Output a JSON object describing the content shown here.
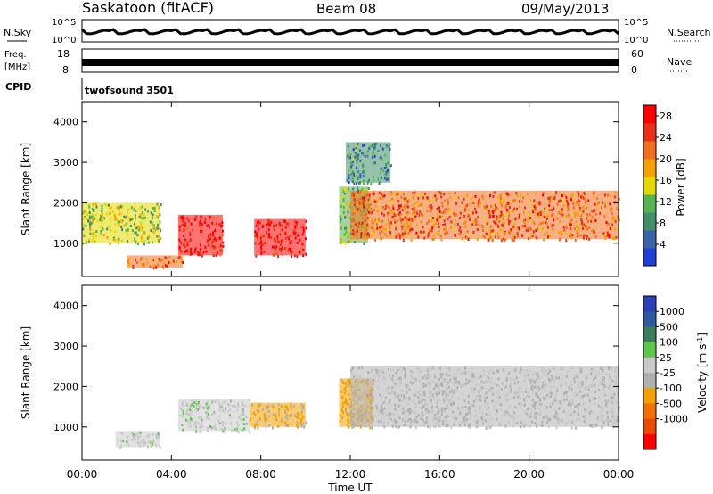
{
  "header": {
    "station": "Saskatoon (fitACF)",
    "beam": "Beam 08",
    "date": "09/May/2013"
  },
  "top_panels": {
    "nsky_label": "N.Sky",
    "nsearch_label": "N.Search",
    "noise_ticks_left": [
      "10^5",
      "10^0"
    ],
    "noise_ticks_right": [
      "10^5",
      "10^0"
    ],
    "freq_label": "Freq.",
    "freq_unit": "[MHz]",
    "freq_ticks": [
      "18",
      "8"
    ],
    "nave_label": "Nave",
    "nave_ticks": [
      "60",
      "0"
    ],
    "cpid_label": "CPID",
    "cpid_value": "twofsound 3501"
  },
  "colors": {
    "power_scale": [
      "#1f3fd6",
      "#3a63a8",
      "#3f8f6a",
      "#56b24e",
      "#e3d800",
      "#f5a000",
      "#f07020",
      "#e83018",
      "#ff0000"
    ],
    "velocity_scale": [
      "#2a3fb8",
      "#2f5aa0",
      "#3c7c5a",
      "#5cc64a",
      "#c8c8c8",
      "#b0b0b0",
      "#f2a000",
      "#f07000",
      "#e84a00",
      "#ff0000"
    ],
    "ground_scatter": "#b8b8b8"
  },
  "chart_data": [
    {
      "type": "heatmap",
      "title": "",
      "xlabel": "",
      "ylabel": "Slant Range [km]",
      "xlim": [
        "00:00",
        "24:00"
      ],
      "ylim": [
        180,
        4500
      ],
      "yticks": [
        "1000",
        "2000",
        "3000",
        "4000"
      ],
      "colorbar": {
        "label": "Power [dB]",
        "ticks": [
          "4",
          "8",
          "12",
          "16",
          "20",
          "24",
          "28"
        ],
        "range": [
          0,
          30
        ]
      },
      "features": [
        {
          "start_hour": 0,
          "end_hour": 3.5,
          "range_km": [
            1000,
            2000
          ],
          "value": 14
        },
        {
          "start_hour": 2.0,
          "end_hour": 4.5,
          "range_km": [
            400,
            700
          ],
          "value": 22
        },
        {
          "start_hour": 4.3,
          "end_hour": 6.3,
          "range_km": [
            700,
            1700
          ],
          "value": 28
        },
        {
          "start_hour": 7.7,
          "end_hour": 10.0,
          "range_km": [
            700,
            1600
          ],
          "value": 28
        },
        {
          "start_hour": 11.5,
          "end_hour": 12.8,
          "range_km": [
            1000,
            2400
          ],
          "value": 12
        },
        {
          "start_hour": 12.0,
          "end_hour": 24.0,
          "range_km": [
            1100,
            2300
          ],
          "value": 22
        },
        {
          "start_hour": 11.8,
          "end_hour": 13.8,
          "range_km": [
            2500,
            3500
          ],
          "value": 8
        }
      ]
    },
    {
      "type": "heatmap",
      "title": "",
      "xlabel": "Time UT",
      "ylabel": "Slant Range [km]",
      "xlim": [
        "00:00",
        "24:00"
      ],
      "xticks": [
        "00:00",
        "04:00",
        "08:00",
        "12:00",
        "16:00",
        "20:00",
        "00:00"
      ],
      "ylim": [
        180,
        4500
      ],
      "yticks": [
        "1000",
        "2000",
        "3000",
        "4000"
      ],
      "colorbar": {
        "label": "Velocity [m s",
        "label_superscript": "-1",
        "label_close": "]",
        "ticks": [
          "1000",
          "500",
          "100",
          "25",
          "-25",
          "-100",
          "-500",
          "-1000"
        ],
        "range": [
          -1000,
          1000
        ]
      },
      "features": [
        {
          "start_hour": 1.5,
          "end_hour": 3.5,
          "range_km": [
            500,
            900
          ],
          "value": 150
        },
        {
          "start_hour": 4.3,
          "end_hour": 7.5,
          "range_km": [
            900,
            1700
          ],
          "value": 120
        },
        {
          "start_hour": 7.5,
          "end_hour": 10.0,
          "range_km": [
            1000,
            1600
          ],
          "value": -250
        },
        {
          "start_hour": 11.5,
          "end_hour": 13.0,
          "range_km": [
            1000,
            2200
          ],
          "value": -300
        },
        {
          "start_hour": 12.0,
          "end_hour": 24.0,
          "range_km": [
            1000,
            2500
          ],
          "value": 0
        }
      ]
    }
  ]
}
